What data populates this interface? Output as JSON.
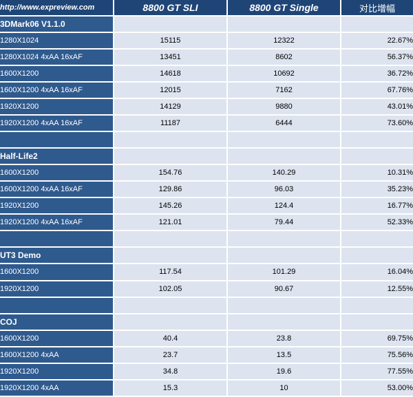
{
  "header": {
    "site": "http://www.expreview.com",
    "col_sli": "8800 GT SLI",
    "col_single": "8800 GT Single",
    "col_gain": "对比增幅"
  },
  "sections": [
    {
      "title": "3DMark06 V1.1.0",
      "rows": [
        {
          "setting": "1280X1024",
          "sli": "15115",
          "single": "12322",
          "gain": "22.67%"
        },
        {
          "setting": "1280X1024 4xAA 16xAF",
          "sli": "13451",
          "single": "8602",
          "gain": "56.37%"
        },
        {
          "setting": "1600X1200",
          "sli": "14618",
          "single": "10692",
          "gain": "36.72%"
        },
        {
          "setting": "1600X1200 4xAA 16xAF",
          "sli": "12015",
          "single": "7162",
          "gain": "67.76%"
        },
        {
          "setting": "1920X1200",
          "sli": "14129",
          "single": "9880",
          "gain": "43.01%"
        },
        {
          "setting": "1920X1200 4xAA 16xAF",
          "sli": "11187",
          "single": "6444",
          "gain": "73.60%"
        }
      ]
    },
    {
      "title": "Half-Life2",
      "rows": [
        {
          "setting": "1600X1200",
          "sli": "154.76",
          "single": "140.29",
          "gain": "10.31%"
        },
        {
          "setting": "1600X1200 4xAA 16xAF",
          "sli": "129.86",
          "single": "96.03",
          "gain": "35.23%"
        },
        {
          "setting": "1920X1200",
          "sli": "145.26",
          "single": "124.4",
          "gain": "16.77%"
        },
        {
          "setting": "1920X1200 4xAA 16xAF",
          "sli": "121.01",
          "single": "79.44",
          "gain": "52.33%"
        }
      ]
    },
    {
      "title": "UT3 Demo",
      "rows": [
        {
          "setting": "1600X1200",
          "sli": "117.54",
          "single": "101.29",
          "gain": "16.04%"
        },
        {
          "setting": "1920X1200",
          "sli": "102.05",
          "single": "90.67",
          "gain": "12.55%"
        }
      ]
    },
    {
      "title": "COJ",
      "rows": [
        {
          "setting": "1600X1200",
          "sli": "40.4",
          "single": "23.8",
          "gain": "69.75%"
        },
        {
          "setting": "1600X1200 4xAA",
          "sli": "23.7",
          "single": "13.5",
          "gain": "75.56%"
        },
        {
          "setting": "1920X1200",
          "sli": "34.8",
          "single": "19.6",
          "gain": "77.55%"
        },
        {
          "setting": "1920X1200 4xAA",
          "sli": "15.3",
          "single": "10",
          "gain": "53.00%"
        }
      ]
    }
  ]
}
